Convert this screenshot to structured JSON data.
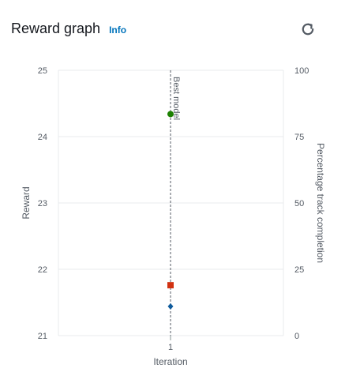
{
  "header": {
    "title": "Reward graph",
    "info_label": "Info",
    "refresh_icon": "refresh-icon"
  },
  "colors": {
    "grid": "#e9ebed",
    "axis_text": "#545b64",
    "green": "#1d8102",
    "red": "#d13212",
    "blue": "#0f5b9c"
  },
  "chart_data": {
    "type": "scatter",
    "xlabel": "Iteration",
    "ylabel": "Reward",
    "y2label": "Percentage track completion",
    "x_ticks": [
      "1"
    ],
    "y_ticks": [
      "25",
      "24",
      "23",
      "22",
      "21"
    ],
    "y2_ticks": [
      "100",
      "75",
      "50",
      "25",
      "0"
    ],
    "ylim": [
      21,
      25
    ],
    "y2lim": [
      0,
      100
    ],
    "annotation": "Best model",
    "series": [
      {
        "marker": "circle",
        "color": "#1d8102",
        "axis": "right",
        "points": [
          {
            "x": 1,
            "y": 83.5
          }
        ]
      },
      {
        "marker": "square",
        "color": "#d13212",
        "axis": "right",
        "points": [
          {
            "x": 1,
            "y": 19
          }
        ]
      },
      {
        "marker": "diamond",
        "color": "#0f5b9c",
        "axis": "left",
        "points": [
          {
            "x": 1,
            "y": 21.44
          }
        ]
      }
    ]
  }
}
